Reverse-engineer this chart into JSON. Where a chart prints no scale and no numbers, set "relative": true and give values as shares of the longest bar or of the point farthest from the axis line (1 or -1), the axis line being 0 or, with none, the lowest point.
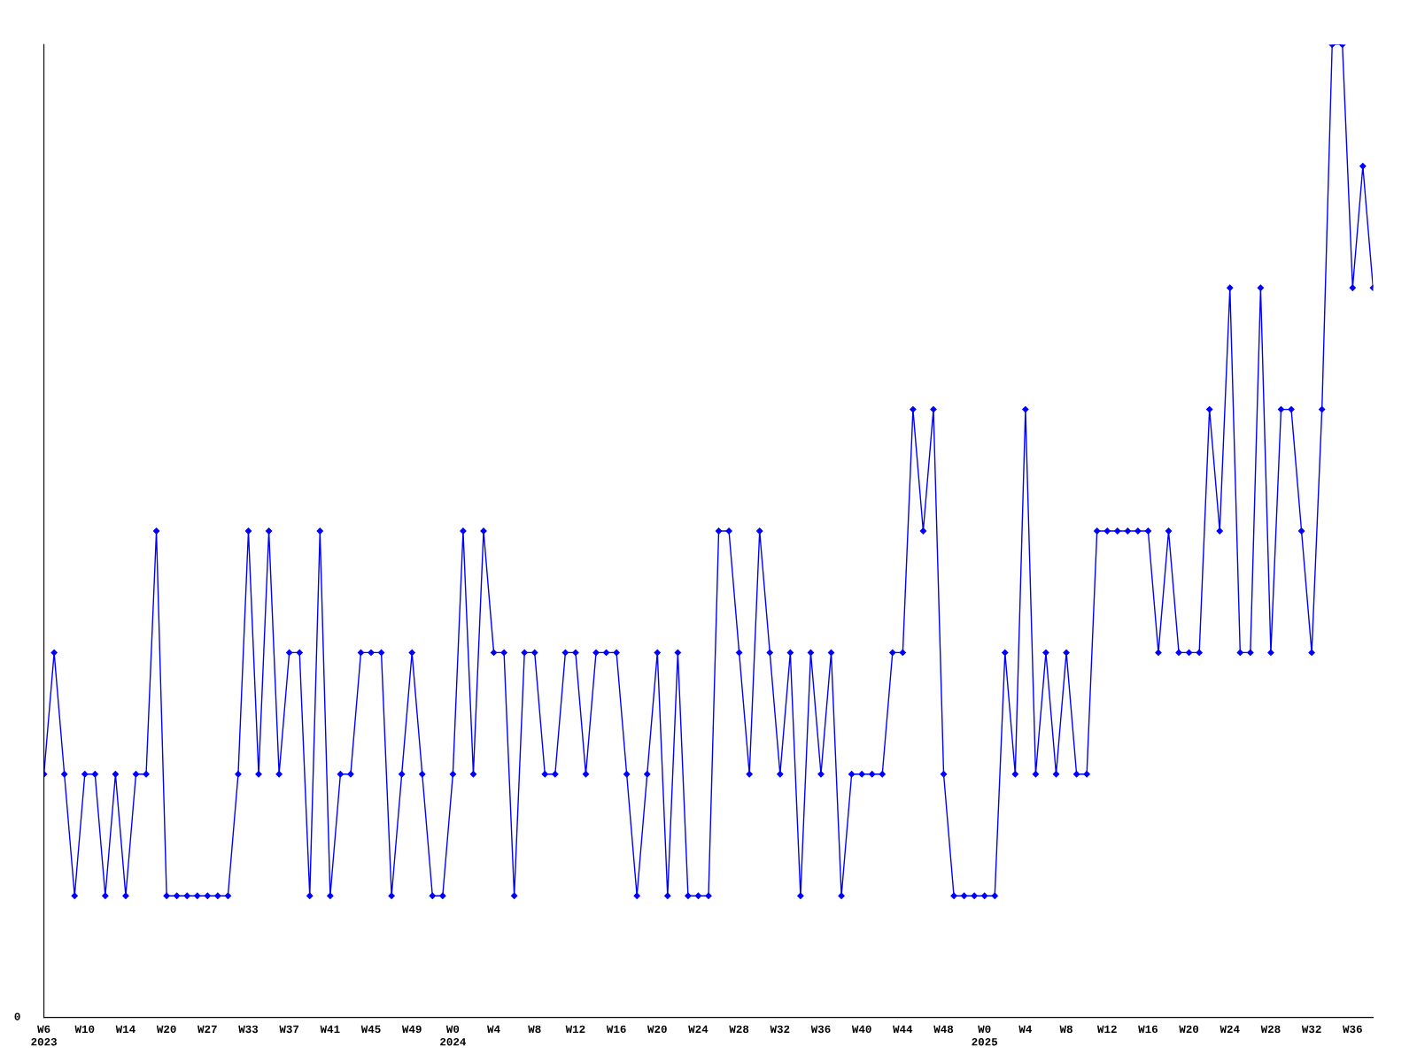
{
  "chart_data": {
    "type": "line",
    "relative": true,
    "marker": "diamond",
    "line_style": "solid",
    "grid": false,
    "legend": false,
    "categories": [
      "W6\n2023",
      null,
      null,
      null,
      "W10",
      null,
      null,
      null,
      "W14",
      null,
      null,
      null,
      "W20",
      null,
      null,
      null,
      "W27",
      null,
      null,
      null,
      "W33",
      null,
      null,
      null,
      "W37",
      null,
      null,
      null,
      "W41",
      null,
      null,
      null,
      "W45",
      null,
      null,
      null,
      "W49",
      null,
      null,
      null,
      "W0\n2024",
      null,
      null,
      null,
      "W4",
      null,
      null,
      null,
      "W8",
      null,
      null,
      null,
      "W12",
      null,
      null,
      null,
      "W16",
      null,
      null,
      null,
      "W20",
      null,
      null,
      null,
      "W24",
      null,
      null,
      null,
      "W28",
      null,
      null,
      null,
      "W32",
      null,
      null,
      null,
      "W36",
      null,
      null,
      null,
      "W40",
      null,
      null,
      null,
      "W44",
      null,
      null,
      null,
      "W48",
      null,
      null,
      null,
      "W0\n2025",
      null,
      null,
      null,
      "W4",
      null,
      null,
      null,
      "W8",
      null,
      null,
      null,
      "W12",
      null,
      null,
      null,
      "W16",
      null,
      null,
      null,
      "W20",
      null,
      null,
      null,
      "W24",
      null,
      null,
      null,
      "W28",
      null,
      null,
      null,
      "W32",
      null,
      null,
      null,
      "W36",
      null,
      null
    ],
    "series": [
      {
        "color": "#0000ff",
        "values": [
          0.25,
          0.375,
          0.25,
          0.125,
          0.25,
          0.25,
          0.125,
          0.25,
          0.125,
          0.25,
          0.25,
          0.5,
          0.125,
          0.125,
          0.125,
          0.125,
          0.125,
          0.125,
          0.125,
          0.25,
          0.5,
          0.25,
          0.5,
          0.25,
          0.375,
          0.375,
          0.125,
          0.5,
          0.125,
          0.25,
          0.25,
          0.375,
          0.375,
          0.375,
          0.125,
          0.25,
          0.375,
          0.25,
          0.125,
          0.125,
          0.25,
          0.5,
          0.25,
          0.5,
          0.375,
          0.375,
          0.125,
          0.375,
          0.375,
          0.25,
          0.25,
          0.375,
          0.375,
          0.25,
          0.375,
          0.375,
          0.375,
          0.25,
          0.125,
          0.25,
          0.375,
          0.125,
          0.375,
          0.125,
          0.125,
          0.125,
          0.5,
          0.5,
          0.375,
          0.25,
          0.5,
          0.375,
          0.25,
          0.375,
          0.125,
          0.375,
          0.25,
          0.375,
          0.125,
          0.25,
          0.25,
          0.25,
          0.25,
          0.375,
          0.375,
          0.625,
          0.5,
          0.625,
          0.25,
          0.125,
          0.125,
          0.125,
          0.125,
          0.125,
          0.375,
          0.25,
          0.625,
          0.25,
          0.375,
          0.25,
          0.375,
          0.25,
          0.25,
          0.5,
          0.5,
          0.5,
          0.5,
          0.5,
          0.5,
          0.375,
          0.5,
          0.375,
          0.375,
          0.375,
          0.625,
          0.5,
          0.75,
          0.375,
          0.375,
          0.75,
          0.375,
          0.625,
          0.625,
          0.5,
          0.375,
          0.625,
          1,
          1,
          0.75,
          0.875,
          0.75
        ]
      }
    ],
    "annotations": [
      "0"
    ]
  }
}
